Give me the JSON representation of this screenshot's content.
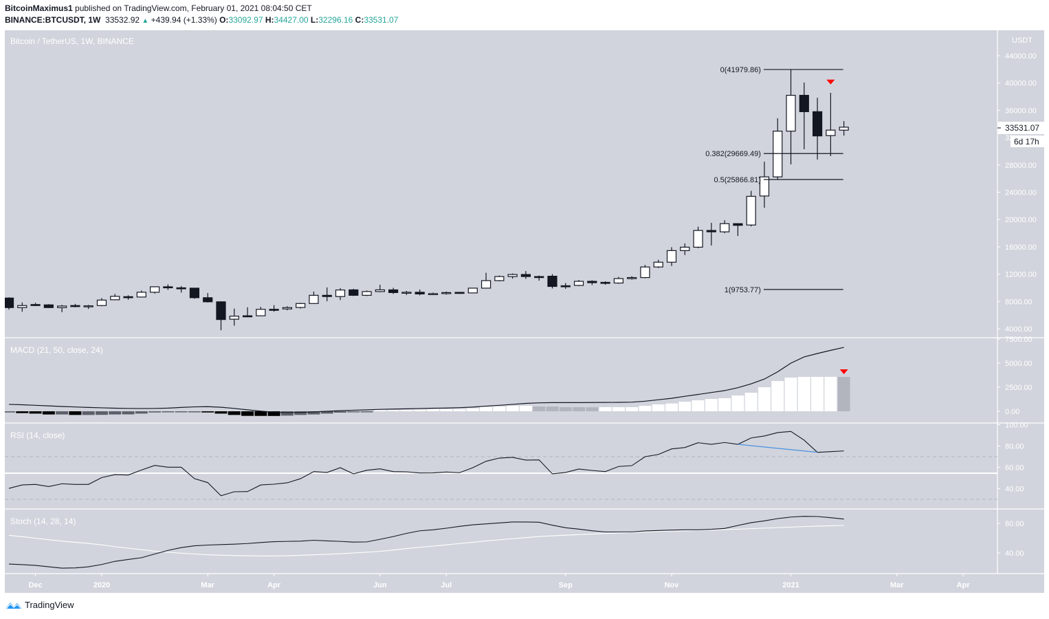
{
  "header": {
    "author": "BitcoinMaximus1",
    "published": " published on TradingView.com, February 01, 2021 08:04:50 CET",
    "symbol": "BINANCE:BTCUSDT, 1W",
    "last": "33532.92",
    "change": "+439.94 (+1.33%)",
    "o_label": "O:",
    "o": "33092.97",
    "h_label": "H:",
    "h": "34427.00",
    "l_label": "L:",
    "l": "32296.16",
    "c_label": "C:",
    "c": "33531.07"
  },
  "footer": {
    "brand": "TradingView"
  },
  "colors": {
    "background": "#d1d4dc",
    "candle_down": "#131722",
    "candle_up": "#ffffff",
    "axis_text": "#ffffff",
    "up_text": "#26a69a",
    "hist_pos_rising": "#ffffff",
    "hist_pos_falling": "#b2b5be",
    "hist_neg_falling": "#000000",
    "hist_neg_rising": "#5d606b",
    "marker": "#ff0000",
    "divergence": "#4a90e2"
  },
  "chart_data": [
    {
      "type": "candlestick",
      "title": "Bitcoin / TetherUS, 1W, BINANCE",
      "ylabel": "USDT",
      "ylim": [
        4000,
        44000
      ],
      "scale": "linear",
      "y_ticks": [
        "44000.00",
        "40000.00",
        "36000.00",
        "28000.00",
        "24000.00",
        "20000.00",
        "16000.00",
        "12000.00",
        "8000.00",
        "4000.00"
      ],
      "last_price_label": "33531.07",
      "countdown_label": "6d 17h",
      "x_ticks": [
        {
          "label": "Dec",
          "at_bar": 2
        },
        {
          "label": "2020",
          "at_bar": 7
        },
        {
          "label": "Mar",
          "at_bar": 15
        },
        {
          "label": "Apr",
          "at_bar": 20
        },
        {
          "label": "Jun",
          "at_bar": 28
        },
        {
          "label": "Jul",
          "at_bar": 33
        },
        {
          "label": "Sep",
          "at_bar": 42
        },
        {
          "label": "Nov",
          "at_bar": 50
        },
        {
          "label": "2021",
          "at_bar": 59
        },
        {
          "label": "Mar",
          "at_bar": 67
        },
        {
          "label": "Apr",
          "at_bar": 72
        }
      ],
      "ohlc_fields": [
        "open",
        "high",
        "low",
        "close"
      ],
      "candles": [
        [
          8500,
          8600,
          6800,
          7100
        ],
        [
          7100,
          7850,
          6500,
          7400
        ],
        [
          7550,
          7800,
          7340,
          7480
        ],
        [
          7500,
          7600,
          7050,
          7100
        ],
        [
          7100,
          7500,
          6430,
          7330
        ],
        [
          7400,
          7650,
          7150,
          7340
        ],
        [
          7340,
          7500,
          6900,
          7360
        ],
        [
          7400,
          8500,
          7300,
          8200
        ],
        [
          8250,
          9100,
          8200,
          8750
        ],
        [
          8700,
          8900,
          8250,
          8600
        ],
        [
          8650,
          9600,
          8600,
          9350
        ],
        [
          9350,
          10200,
          9150,
          10150
        ],
        [
          10150,
          10500,
          9700,
          10000
        ],
        [
          10000,
          10250,
          9300,
          9900
        ],
        [
          9950,
          10000,
          8400,
          8550
        ],
        [
          8550,
          9240,
          7850,
          7950
        ],
        [
          7950,
          8000,
          3780,
          5350
        ],
        [
          5400,
          6950,
          4450,
          5850
        ],
        [
          5900,
          7150,
          5700,
          5850
        ],
        [
          5900,
          7200,
          5850,
          6850
        ],
        [
          6850,
          7450,
          6500,
          6800
        ],
        [
          6900,
          7300,
          6700,
          7100
        ],
        [
          7120,
          7800,
          6950,
          7700
        ],
        [
          7700,
          9450,
          7650,
          8900
        ],
        [
          8900,
          10050,
          8030,
          8720
        ],
        [
          8720,
          9950,
          8200,
          9680
        ],
        [
          9700,
          9850,
          8800,
          8900
        ],
        [
          8900,
          9600,
          8800,
          9450
        ],
        [
          9450,
          10450,
          9350,
          9700
        ],
        [
          9700,
          10000,
          9100,
          9300
        ],
        [
          9300,
          9550,
          8950,
          9350
        ],
        [
          9350,
          9750,
          8900,
          9100
        ],
        [
          9100,
          9300,
          8950,
          9150
        ],
        [
          9150,
          9450,
          9000,
          9300
        ],
        [
          9330,
          9350,
          9100,
          9250
        ],
        [
          9250,
          10000,
          9200,
          9950
        ],
        [
          9950,
          12200,
          9900,
          11050
        ],
        [
          11050,
          11800,
          10950,
          11650
        ],
        [
          11650,
          12100,
          11350,
          11950
        ],
        [
          11950,
          12450,
          11300,
          11650
        ],
        [
          11650,
          11800,
          11050,
          11550
        ],
        [
          11700,
          12000,
          9900,
          10200
        ],
        [
          10300,
          10700,
          9850,
          10200
        ],
        [
          10350,
          11150,
          10250,
          10950
        ],
        [
          10950,
          11100,
          10400,
          10750
        ],
        [
          10800,
          10950,
          10450,
          10700
        ],
        [
          10700,
          11600,
          10600,
          11350
        ],
        [
          11350,
          11700,
          11200,
          11500
        ],
        [
          11500,
          13350,
          11400,
          13050
        ],
        [
          13050,
          14100,
          12900,
          13750
        ],
        [
          13750,
          15950,
          13200,
          15450
        ],
        [
          15450,
          16500,
          14800,
          15950
        ],
        [
          15950,
          18950,
          15800,
          18400
        ],
        [
          18400,
          19520,
          16200,
          18200
        ],
        [
          18200,
          19900,
          18000,
          19400
        ],
        [
          19400,
          19450,
          17600,
          19150
        ],
        [
          19200,
          24200,
          19000,
          23400
        ],
        [
          23450,
          28480,
          21730,
          26250
        ],
        [
          26250,
          34830,
          25870,
          32950
        ],
        [
          32950,
          41950,
          28080,
          38200
        ],
        [
          38200,
          40070,
          30300,
          35800
        ],
        [
          35800,
          37850,
          28790,
          32250
        ],
        [
          32300,
          38560,
          29290,
          33100
        ],
        [
          33093,
          34427,
          32296,
          33531
        ]
      ],
      "fib_levels": [
        {
          "label": "0(41979.86)",
          "price": 41979.86
        },
        {
          "label": "0.382(29669.49)",
          "price": 29669.49
        },
        {
          "label": "0.5(25866.81)",
          "price": 25866.81
        },
        {
          "label": "1(9753.77)",
          "price": 9753.77
        }
      ],
      "fib_from_bar": 57,
      "fib_to_bar": 63,
      "markers": [
        {
          "shape": "triangle-down",
          "bar": 62,
          "price": 40100
        }
      ]
    },
    {
      "type": "line+bar",
      "title": "MACD (21, 50, close, 24)",
      "ylim": [
        -700,
        7500
      ],
      "y_ticks": [
        "7500.00",
        "5000.00",
        "2500.00",
        "0.00"
      ],
      "macd": [
        720,
        680,
        620,
        560,
        500,
        450,
        400,
        360,
        320,
        300,
        290,
        300,
        330,
        400,
        460,
        480,
        420,
        300,
        150,
        20,
        -100,
        -140,
        -110,
        -60,
        0,
        60,
        110,
        150,
        200,
        230,
        260,
        290,
        320,
        340,
        380,
        440,
        540,
        620,
        720,
        820,
        880,
        900,
        900,
        900,
        910,
        920,
        930,
        950,
        1050,
        1200,
        1350,
        1560,
        1750,
        1950,
        2150,
        2450,
        2850,
        3350,
        4100,
        5000,
        5650,
        6000,
        6330,
        6640
      ],
      "histogram": [
        -120,
        -190,
        -240,
        -330,
        -330,
        -380,
        -380,
        -370,
        -330,
        -320,
        -240,
        -120,
        -95,
        -40,
        -40,
        -120,
        -240,
        -380,
        -475,
        -480,
        -485,
        -450,
        -380,
        -330,
        -240,
        -140,
        -50,
        -40,
        120,
        120,
        140,
        160,
        214,
        214,
        214,
        309,
        452,
        500,
        571,
        571,
        500,
        490,
        428,
        425,
        420,
        428,
        428,
        428,
        571,
        714,
        809,
        1000,
        1142,
        1285,
        1357,
        1642,
        1928,
        2499,
        3142,
        3499,
        3570,
        3575,
        3580,
        3570
      ],
      "histogram_last_falling": true,
      "markers": [
        {
          "shape": "triangle-down",
          "bar": 63
        }
      ]
    },
    {
      "type": "line",
      "title": "RSI (14, close)",
      "ylim": [
        15,
        102
      ],
      "y_ticks": [
        "100.00",
        "80.00",
        "60.00",
        "40.00"
      ],
      "bands": [
        70,
        30
      ],
      "horizontal_line": 54.5,
      "values": [
        40.3,
        43.5,
        44,
        42,
        44.6,
        44,
        44,
        50.4,
        53.2,
        52.8,
        57.5,
        61.8,
        60.1,
        60.1,
        49.4,
        45.7,
        33.4,
        37.1,
        37.3,
        43.5,
        44.2,
        45.5,
        49.4,
        56,
        55.2,
        59.7,
        53.9,
        57.3,
        58.6,
        56,
        55.8,
        54.7,
        54.8,
        55.6,
        55,
        59.7,
        65.7,
        68.7,
        69.4,
        66.8,
        67,
        53.9,
        55.2,
        58.4,
        57.1,
        56,
        60.8,
        61.6,
        70,
        72.1,
        77.3,
        78.6,
        83.1,
        81.6,
        83.3,
        81.6,
        87.6,
        89.4,
        92.6,
        93.7,
        85.5,
        74.1,
        74.7,
        75.4
      ],
      "divergence": {
        "from_bar": 55,
        "to_bar": 61
      }
    },
    {
      "type": "line",
      "title": "Stoch (14, 28, 14)",
      "ylim": [
        15,
        99
      ],
      "y_ticks": [
        "80.00",
        "40.00"
      ],
      "k": [
        25.1,
        24.2,
        23.2,
        21.3,
        19.5,
        19.8,
        21.3,
        24.4,
        28.7,
        31.2,
        33.6,
        38.6,
        43.5,
        47.3,
        49.7,
        50.7,
        51.3,
        51.9,
        52.8,
        54.1,
        55.3,
        55.7,
        56,
        57.2,
        56.3,
        55.7,
        54.7,
        55,
        58.5,
        62.2,
        66.5,
        70,
        71.3,
        73.5,
        76,
        78.1,
        79.4,
        80.6,
        81.9,
        81.9,
        81.6,
        77.6,
        74.1,
        72.3,
        70.1,
        68.5,
        68.5,
        68.5,
        69.8,
        70.4,
        71,
        71.3,
        71.3,
        72,
        73.2,
        77.2,
        81,
        83.4,
        86.5,
        88.6,
        89.6,
        89.3,
        87.7,
        85.9
      ],
      "d": [
        63.9,
        62,
        60,
        58,
        56,
        54.5,
        53,
        51,
        48.5,
        46.5,
        44.5,
        42.5,
        41,
        39.7,
        38.6,
        37.6,
        37,
        36.6,
        36.2,
        36,
        36,
        36.2,
        36.8,
        37.5,
        38.2,
        39,
        40,
        41,
        42.2,
        44,
        46,
        47.8,
        49.3,
        51,
        52.8,
        54.5,
        56.2,
        57.8,
        59.3,
        60.8,
        62.3,
        63.2,
        64,
        64.8,
        65.5,
        66.3,
        67,
        67.8,
        68.5,
        69.1,
        69.6,
        70.1,
        70.6,
        71.1,
        71.6,
        72.2,
        72.9,
        73.6,
        74.3,
        75,
        75.7,
        76.3,
        76.8,
        77.2
      ]
    }
  ]
}
